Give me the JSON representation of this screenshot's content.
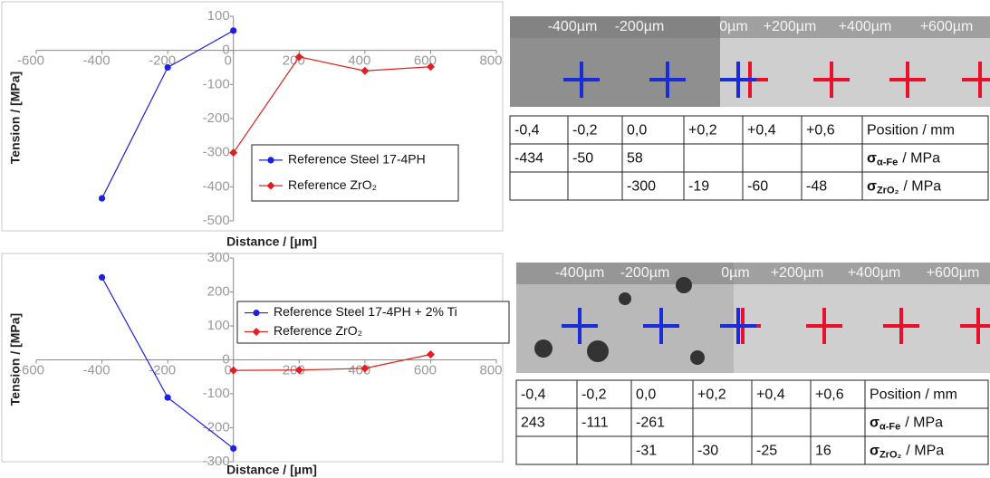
{
  "chart_data": [
    {
      "type": "line",
      "y_label": "Tension / [MPa]",
      "x_label": "Distance / [µm]",
      "xlim": [
        -600,
        800
      ],
      "xticks": [
        -600,
        -400,
        -200,
        0,
        200,
        400,
        600,
        800
      ],
      "ylim": [
        -500,
        100
      ],
      "yticks": [
        -500,
        -400,
        -300,
        -200,
        -100,
        0,
        100
      ],
      "series": [
        {
          "name": "Reference Steel 17-4PH",
          "color": "#1f1fe0",
          "marker": "circle",
          "x": [
            -400,
            -200,
            0
          ],
          "values": [
            -434,
            -50,
            58
          ]
        },
        {
          "name": "Reference ZrO₂",
          "color": "#e01f1f",
          "marker": "diamond",
          "x": [
            0,
            200,
            400,
            600
          ],
          "values": [
            -300,
            -19,
            -60,
            -48
          ]
        }
      ]
    },
    {
      "type": "line",
      "y_label": "Tension / [MPa]",
      "x_label": "Distance / [µm]",
      "xlim": [
        -600,
        800
      ],
      "xticks": [
        -600,
        -400,
        -200,
        0,
        200,
        400,
        600,
        800
      ],
      "ylim": [
        -300,
        300
      ],
      "yticks": [
        -300,
        -200,
        -100,
        0,
        100,
        200,
        300
      ],
      "series": [
        {
          "name": "Reference Steel 17-4PH + 2% Ti",
          "color": "#1f1fe0",
          "marker": "circle",
          "x": [
            -400,
            -200,
            0
          ],
          "values": [
            243,
            -111,
            -261
          ]
        },
        {
          "name": "Reference ZrO₂",
          "color": "#e01f1f",
          "marker": "diamond",
          "x": [
            0,
            200,
            400,
            600
          ],
          "values": [
            -31,
            -30,
            -25,
            16
          ]
        }
      ]
    }
  ],
  "micrographs": [
    {
      "scale_labels": [
        "-400µm",
        "-200µm",
        "0µm",
        "+200µm",
        "+400µm",
        "+600µm"
      ]
    },
    {
      "scale_labels": [
        "-400µm",
        "-200µm",
        "0µm",
        "+200µm",
        "+400µm",
        "+600µm"
      ]
    }
  ],
  "tables": [
    {
      "rows": [
        [
          "-0,4",
          "-0,2",
          "0,0",
          "+0,2",
          "+0,4",
          "+0,6",
          "Position / mm"
        ],
        [
          "-434",
          "-50",
          "58",
          null,
          null,
          null,
          {
            "symbol": "σ",
            "sub": "α-Fe",
            "unit": "/ MPa"
          }
        ],
        [
          null,
          null,
          "-300",
          "-19",
          "-60",
          "-48",
          {
            "symbol": "σ",
            "sub": "ZrO₂",
            "unit": "/ MPa"
          }
        ]
      ]
    },
    {
      "rows": [
        [
          "-0,4",
          "-0,2",
          "0,0",
          "+0,2",
          "+0,4",
          "+0,6",
          "Position / mm"
        ],
        [
          "243",
          "-111",
          "-261",
          null,
          null,
          null,
          {
            "symbol": "σ",
            "sub": "α-Fe",
            "unit": "/ MPa"
          }
        ],
        [
          null,
          null,
          "-31",
          "-30",
          "-25",
          "16",
          {
            "symbol": "σ",
            "sub": "ZrO₂",
            "unit": "/ MPa"
          }
        ]
      ]
    }
  ]
}
